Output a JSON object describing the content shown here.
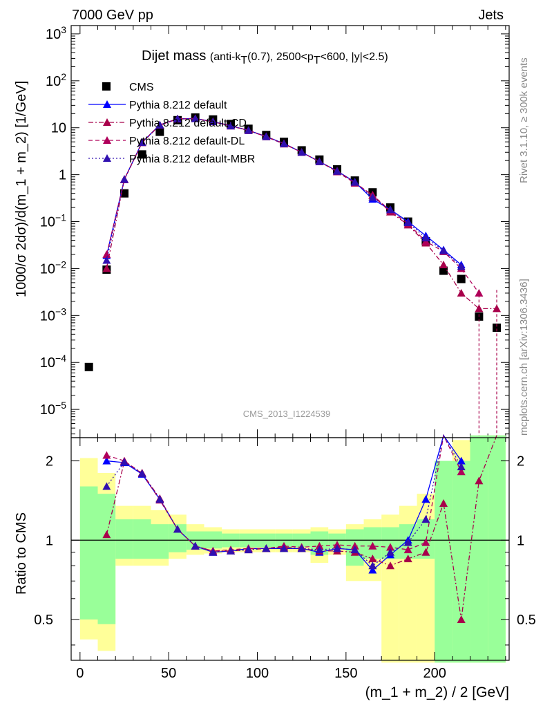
{
  "header": {
    "left": "7000 GeV pp",
    "right": "Jets"
  },
  "side_labels": {
    "rivet": "Rivet 3.1.10, ≥ 300k events",
    "mcplots": "mcplots.cern.ch [arXiv:1306.3436]"
  },
  "watermark": "CMS_2013_I1224539",
  "chart_data": [
    {
      "type": "scatter",
      "title": "Dijet mass",
      "subtitle": "(anti-k_T(0.7), 2500<p_T<600, |y|<2.5)",
      "subtitle_parts": {
        "p1": "(anti-k",
        "s1": "T",
        "p2": "(0.7), 2500<p",
        "s2": "T",
        "p3": "<600, |y|<2.5)"
      },
      "ylabel": "1000/σ 2dσ)/d(m_1 + m_2) [1/GeV]",
      "yscale": "log",
      "ylim": [
        2.5e-06,
        1500.0
      ],
      "xlim": [
        -5,
        242
      ],
      "ytick_labels": [
        {
          "base": "10",
          "exp": "3",
          "value": 1000
        },
        {
          "base": "10",
          "exp": "2",
          "value": 100
        },
        {
          "base": "10",
          "exp": "",
          "value": 10
        },
        {
          "base": "1",
          "exp": "",
          "value": 1
        },
        {
          "base": "10",
          "exp": "−1",
          "value": 0.1
        },
        {
          "base": "10",
          "exp": "−2",
          "value": 0.01
        },
        {
          "base": "10",
          "exp": "−3",
          "value": 0.001
        },
        {
          "base": "10",
          "exp": "−4",
          "value": 0.0001
        },
        {
          "base": "10",
          "exp": "−5",
          "value": 1e-05
        }
      ],
      "legend_position": "top-left",
      "series": [
        {
          "name": "CMS",
          "color": "#000000",
          "marker": "square",
          "x": [
            5,
            15,
            25,
            35,
            45,
            55,
            65,
            75,
            85,
            95,
            105,
            115,
            125,
            135,
            145,
            155,
            165,
            175,
            185,
            195,
            205,
            215,
            225,
            235
          ],
          "y": [
            8e-05,
            0.0095,
            0.4,
            2.7,
            8.2,
            14.5,
            16.5,
            15.0,
            12.0,
            9.5,
            7.0,
            5.0,
            3.3,
            2.1,
            1.3,
            0.75,
            0.42,
            0.2,
            0.1,
            0.038,
            0.009,
            0.006,
            0.00095,
            0.00055
          ]
        },
        {
          "name": "Pythia 8.212 default",
          "color": "#0000ff",
          "line": "solid",
          "x": [
            15,
            25,
            35,
            45,
            55,
            65,
            75,
            85,
            95,
            105,
            115,
            125,
            135,
            145,
            155,
            165,
            175,
            185,
            195,
            205,
            215
          ],
          "y": [
            0.019,
            0.8,
            4.9,
            11.5,
            15.5,
            15.7,
            13.5,
            11.0,
            8.8,
            6.5,
            4.6,
            3.0,
            1.9,
            1.2,
            0.7,
            0.3,
            0.18,
            0.1,
            0.05,
            0.025,
            0.012
          ]
        },
        {
          "name": "Pythia 8.212 default-CD",
          "color": "#a8004a",
          "line": "dashdot",
          "x": [
            15,
            25,
            35,
            45,
            55,
            65,
            75,
            85,
            95,
            105,
            115,
            125,
            135,
            145,
            155,
            165,
            175,
            185,
            195,
            205,
            215,
            225,
            235
          ],
          "y": [
            0.01,
            0.8,
            4.9,
            11.5,
            15.5,
            15.7,
            13.5,
            11.0,
            8.8,
            6.5,
            4.6,
            3.0,
            1.9,
            1.2,
            0.68,
            0.36,
            0.16,
            0.085,
            0.035,
            0.012,
            0.003,
            0.0014,
            0.0014
          ]
        },
        {
          "name": "Pythia 8.212 default-DL",
          "color": "#b0005a",
          "line": "dashed",
          "x": [
            15,
            25,
            35,
            45,
            55,
            65,
            75,
            85,
            95,
            105,
            115,
            125,
            135,
            145,
            155,
            165,
            175,
            185,
            195,
            205,
            215,
            225
          ],
          "y": [
            0.02,
            0.78,
            4.8,
            11.3,
            15.3,
            15.6,
            13.4,
            10.9,
            8.7,
            6.4,
            4.5,
            3.0,
            1.9,
            1.15,
            0.66,
            0.37,
            0.17,
            0.09,
            0.038,
            0.023,
            0.01,
            0.003
          ]
        },
        {
          "name": "Pythia 8.212 default-MBR",
          "color": "#3010b0",
          "line": "dotted",
          "x": [
            15,
            25,
            35,
            45,
            55,
            65,
            75,
            85,
            95,
            105,
            115,
            125,
            135,
            145,
            155,
            165,
            175,
            185,
            195,
            205,
            215
          ],
          "y": [
            0.015,
            0.79,
            4.85,
            11.4,
            15.4,
            15.6,
            13.45,
            10.95,
            8.75,
            6.45,
            4.55,
            3.0,
            1.9,
            1.18,
            0.69,
            0.33,
            0.18,
            0.095,
            0.045,
            0.024,
            0.011
          ]
        }
      ]
    },
    {
      "type": "scatter",
      "ylabel": "Ratio to CMS",
      "xlabel": "(m_1 + m_2) / 2 [GeV]",
      "xlim": [
        -5,
        242
      ],
      "yscale": "log",
      "ylim": [
        0.35,
        2.45
      ],
      "xticks": [
        0,
        50,
        100,
        150,
        200
      ],
      "yticks": [
        0.5,
        1,
        2
      ],
      "ytick_labels": [
        "0.5",
        "1",
        "2"
      ],
      "reference_line": 1,
      "uncertainty_bands": {
        "bin_edges": [
          0,
          10,
          20,
          30,
          40,
          50,
          60,
          70,
          80,
          90,
          100,
          110,
          120,
          130,
          140,
          150,
          160,
          170,
          180,
          190,
          200,
          210,
          220,
          230,
          240
        ],
        "yellow_lo": [
          0.42,
          0.38,
          0.8,
          0.8,
          0.8,
          0.85,
          0.88,
          0.89,
          0.9,
          0.9,
          0.9,
          0.9,
          0.9,
          0.82,
          0.88,
          0.7,
          0.7,
          0.3,
          0.3,
          0.3,
          0.3,
          0.3,
          0.3,
          0.3
        ],
        "yellow_hi": [
          2.05,
          1.8,
          1.35,
          1.35,
          1.3,
          1.25,
          1.15,
          1.12,
          1.1,
          1.1,
          1.1,
          1.1,
          1.1,
          1.12,
          1.1,
          1.15,
          1.2,
          1.25,
          1.35,
          1.5,
          1.8,
          2.4,
          3.0,
          3.0
        ],
        "green_lo": [
          0.5,
          0.48,
          0.85,
          0.85,
          0.85,
          0.9,
          0.92,
          0.93,
          0.94,
          0.94,
          0.94,
          0.94,
          0.94,
          0.88,
          0.93,
          0.8,
          0.85,
          0.85,
          0.85,
          0.85,
          0.3,
          0.3,
          0.3,
          0.3
        ],
        "green_hi": [
          1.6,
          1.5,
          1.2,
          1.2,
          1.15,
          1.15,
          1.08,
          1.08,
          1.06,
          1.06,
          1.06,
          1.06,
          1.06,
          1.08,
          1.06,
          1.1,
          1.12,
          1.12,
          1.15,
          1.2,
          2.0,
          2.0,
          3.0,
          3.0
        ]
      },
      "series": [
        {
          "name": "Pythia 8.212 default",
          "color": "#0000ff",
          "x": [
            15,
            25,
            35,
            45,
            55,
            65,
            75,
            85,
            95,
            105,
            115,
            125,
            135,
            145,
            155,
            165,
            175,
            185,
            195,
            205,
            215
          ],
          "y": [
            2.0,
            1.97,
            1.78,
            1.43,
            1.1,
            0.95,
            0.9,
            0.91,
            0.93,
            0.93,
            0.93,
            0.93,
            0.9,
            0.93,
            0.92,
            0.77,
            0.88,
            1.0,
            1.43,
            2.6,
            2.0
          ]
        },
        {
          "name": "Pythia 8.212 default-CD",
          "color": "#a8004a",
          "x": [
            15,
            25,
            35,
            45,
            55,
            65,
            75,
            85,
            95,
            105,
            115,
            125,
            135,
            145,
            155,
            165,
            175,
            185,
            195,
            205,
            215,
            225,
            235
          ],
          "y": [
            1.05,
            1.99,
            1.8,
            1.44,
            1.1,
            0.95,
            0.91,
            0.91,
            0.92,
            0.93,
            0.94,
            0.93,
            0.91,
            0.91,
            0.9,
            0.85,
            0.8,
            0.85,
            0.9,
            1.38,
            0.5,
            1.68,
            2.5
          ]
        },
        {
          "name": "Pythia 8.212 default-DL",
          "color": "#b0005a",
          "x": [
            15,
            25,
            35,
            45,
            55,
            65,
            75,
            85,
            95,
            105,
            115,
            125,
            135,
            145,
            155,
            165,
            175,
            185,
            195,
            205,
            215
          ],
          "y": [
            2.1,
            2.0,
            1.79,
            1.42,
            1.1,
            0.95,
            0.91,
            0.92,
            0.93,
            0.93,
            0.95,
            0.94,
            0.95,
            0.96,
            0.95,
            0.95,
            0.94,
            0.92,
            0.98,
            2.7,
            1.82
          ]
        },
        {
          "name": "Pythia 8.212 default-MBR",
          "color": "#3010b0",
          "x": [
            15,
            25,
            35,
            45,
            55,
            65,
            75,
            85,
            95,
            105,
            115,
            125,
            135,
            145,
            155,
            165,
            175,
            185,
            195,
            205,
            215
          ],
          "y": [
            1.6,
            1.98,
            1.79,
            1.43,
            1.1,
            0.95,
            0.9,
            0.91,
            0.92,
            0.93,
            0.93,
            0.93,
            0.92,
            0.93,
            0.92,
            0.8,
            0.9,
            0.98,
            1.2,
            2.6,
            1.9
          ]
        }
      ]
    }
  ]
}
